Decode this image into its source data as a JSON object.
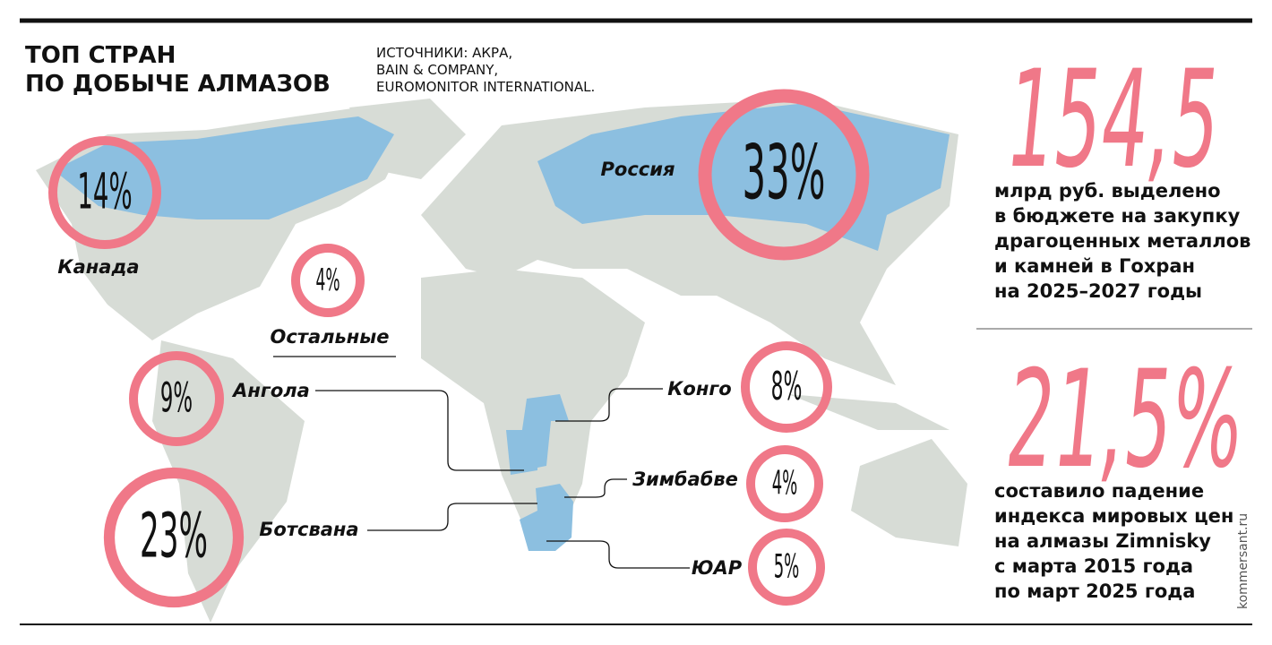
{
  "header": {
    "title": [
      "ТОП СТРАН",
      "ПО ДОБЫЧЕ АЛМАЗОВ"
    ],
    "sources": [
      "ИСТОЧНИКИ: АКРА,",
      "BAIN & COMPANY,",
      "EUROMONITOR INTERNATIONAL."
    ]
  },
  "countries": [
    {
      "name": "Канада",
      "share": "14%"
    },
    {
      "name": "Россия",
      "share": "33%"
    },
    {
      "name": "Остальные",
      "share": "4%"
    },
    {
      "name": "Ангола",
      "share": "9%"
    },
    {
      "name": "Ботсвана",
      "share": "23%"
    },
    {
      "name": "Конго",
      "share": "8%"
    },
    {
      "name": "Зимбабве",
      "share": "4%"
    },
    {
      "name": "ЮАР",
      "share": "5%"
    }
  ],
  "facts": [
    {
      "figure": "154,5",
      "text": [
        "млрд руб. выделено",
        "в бюджете на закупку",
        "драгоценных металлов",
        "и камней в Гохран",
        "на 2025–2027 годы"
      ]
    },
    {
      "figure": "21,5%",
      "text": [
        "составило падение",
        "индекса мировых цен",
        "на алмазы Zimnisky",
        "с марта 2015 года",
        "по март 2025 года"
      ]
    }
  ],
  "footer": {
    "source": "kommersant.ru"
  }
}
